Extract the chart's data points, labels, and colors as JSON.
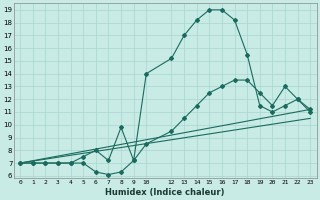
{
  "xlabel": "Humidex (Indice chaleur)",
  "bg_color": "#c8ebe5",
  "grid_color": "#a8d5ce",
  "line_color": "#1a6b5e",
  "ylim": [
    5.8,
    19.5
  ],
  "xlim": [
    -0.5,
    23.5
  ],
  "yticks": [
    6,
    7,
    8,
    9,
    10,
    11,
    12,
    13,
    14,
    15,
    16,
    17,
    18,
    19
  ],
  "xticks": [
    0,
    1,
    2,
    3,
    4,
    5,
    6,
    7,
    8,
    9,
    10,
    12,
    13,
    14,
    15,
    16,
    17,
    18,
    19,
    20,
    21,
    22,
    23
  ],
  "line1_x": [
    0,
    1,
    2,
    3,
    4,
    5,
    6,
    7,
    8,
    9,
    10,
    12,
    13,
    14,
    15,
    16,
    17,
    18,
    19,
    20,
    21,
    22,
    23
  ],
  "line1_y": [
    7.0,
    7.0,
    7.0,
    7.0,
    7.0,
    7.5,
    8.0,
    7.2,
    9.8,
    7.2,
    14.0,
    15.2,
    17.0,
    18.2,
    19.0,
    19.0,
    18.2,
    15.5,
    11.5,
    11.0,
    11.5,
    12.0,
    11.2
  ],
  "line2_x": [
    0,
    1,
    2,
    3,
    4,
    5,
    6,
    7,
    8,
    9,
    10,
    12,
    13,
    14,
    15,
    16,
    17,
    18,
    19,
    20,
    21,
    22,
    23
  ],
  "line2_y": [
    7.0,
    7.0,
    7.0,
    7.0,
    7.0,
    7.0,
    6.3,
    6.1,
    6.3,
    7.2,
    8.5,
    9.5,
    10.5,
    11.5,
    12.5,
    13.0,
    13.5,
    13.5,
    12.5,
    11.5,
    13.0,
    12.0,
    11.0
  ],
  "line3_x": [
    0,
    23
  ],
  "line3_y": [
    7.0,
    10.5
  ],
  "line4_x": [
    0,
    23
  ],
  "line4_y": [
    7.0,
    11.2
  ]
}
